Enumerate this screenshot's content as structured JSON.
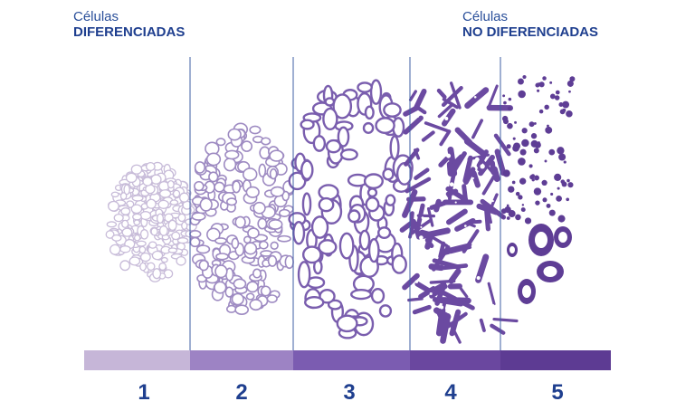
{
  "header_left": {
    "line1": "Células",
    "line2": "DIFERENCIADAS"
  },
  "header_right": {
    "line1": "Células",
    "line2": "NO DIFERENCIADAS"
  },
  "grades": [
    "1",
    "2",
    "3",
    "4",
    "5"
  ],
  "colors": {
    "grade1": "#c6b6d8",
    "grade2": "#9d83c4",
    "grade3": "#7b5cb1",
    "grade4": "#6a479f",
    "grade5": "#5d3b93",
    "divider": "#3f5fa4",
    "text": "#1f3f8f"
  }
}
